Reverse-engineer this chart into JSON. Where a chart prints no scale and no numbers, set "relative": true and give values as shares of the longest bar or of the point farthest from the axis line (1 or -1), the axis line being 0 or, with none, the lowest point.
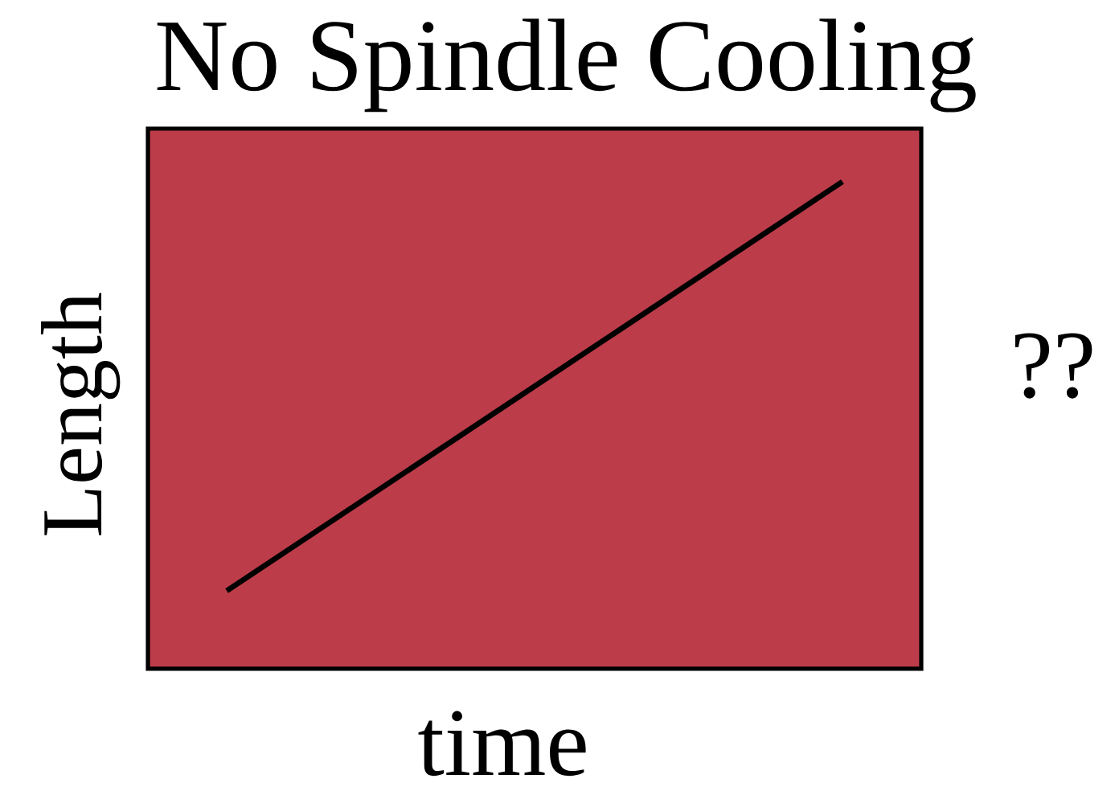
{
  "chart_data": {
    "type": "line",
    "title": "No Spindle Cooling",
    "xlabel": "time",
    "ylabel": "Length",
    "categories": [
      null,
      null
    ],
    "series": [
      {
        "color": "#000000",
        "values": [
          0.16,
          1
        ]
      }
    ],
    "relative": true,
    "marker": "none",
    "line_style": "solid",
    "annotations": [
      "??"
    ]
  }
}
